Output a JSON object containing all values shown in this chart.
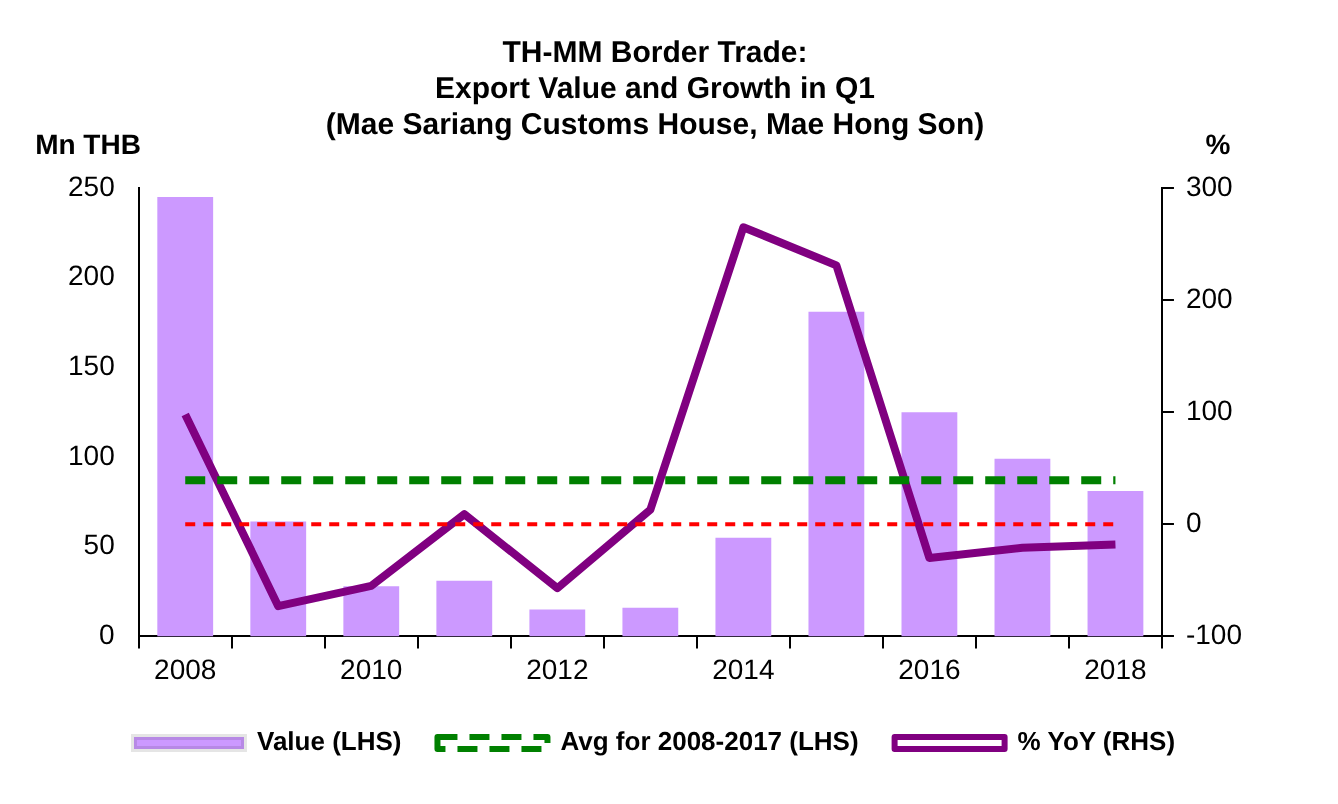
{
  "chart_data": {
    "type": "bar",
    "title": "TH-MM Border Trade:\nExport Value and Growth in Q1\n(Mae Sariang Customs House, Mae Hong Son)",
    "ylabel": "Mn THB",
    "y2label": "%",
    "categories": [
      "2008",
      null,
      "2010",
      null,
      "2012",
      null,
      "2014",
      null,
      "2016",
      null,
      "2018"
    ],
    "series": [
      {
        "name": "Value (LHS)",
        "color": "#cc99ff",
        "values": [
          245,
          64,
          28,
          31,
          15,
          16,
          55,
          181,
          125,
          99,
          81
        ]
      },
      {
        "name": "Avg for 2008-2017 (LHS)",
        "type": "line",
        "line_style": "dashed",
        "color": "#008000",
        "values": [
          87,
          87,
          87,
          87,
          87,
          87,
          87,
          87,
          87,
          87,
          87
        ]
      },
      {
        "name": "% YoY (RHS)",
        "type": "line",
        "axis": "y2",
        "color": "#800080",
        "values": [
          98,
          -73,
          -55,
          9,
          -57,
          13,
          265,
          231,
          -30,
          -21,
          -18
        ]
      }
    ],
    "ylim": [
      0,
      250
    ],
    "yticks": [
      0,
      50,
      100,
      150,
      200,
      250
    ],
    "y2lim": [
      -100,
      300
    ],
    "y2ticks": [
      -100,
      0,
      100,
      200,
      300
    ],
    "ref_lines": [
      {
        "axis": "y2",
        "value": 0,
        "color": "#ff0000",
        "line_style": "dashed"
      }
    ],
    "grid": false,
    "legend": "bottom",
    "marker": "none"
  }
}
